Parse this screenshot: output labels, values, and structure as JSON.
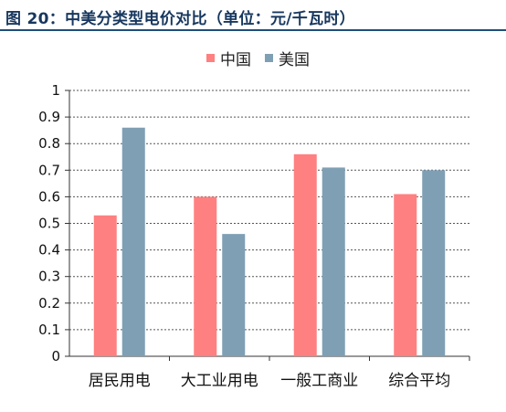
{
  "header": {
    "title": "图 20：中美分类型电价对比（单位：元/千瓦时）"
  },
  "colors": {
    "title": "#17375e",
    "rule": "#1f4e79",
    "china": "#ff8080",
    "usa": "#7f9fb4",
    "grid": "#555555"
  },
  "chart_data": {
    "type": "bar",
    "categories": [
      "居民用电",
      "大工业用电",
      "一般工商业",
      "综合平均"
    ],
    "series": [
      {
        "name": "中国",
        "values": [
          0.53,
          0.6,
          0.76,
          0.61
        ]
      },
      {
        "name": "美国",
        "values": [
          0.86,
          0.46,
          0.71,
          0.7
        ]
      }
    ],
    "ylim": [
      0,
      1
    ],
    "yticks": [
      "0",
      "0.1",
      "0.2",
      "0.3",
      "0.4",
      "0.5",
      "0.6",
      "0.7",
      "0.8",
      "0.9",
      "1"
    ],
    "legend_position": "top-center",
    "grid": "dashed horizontal"
  }
}
